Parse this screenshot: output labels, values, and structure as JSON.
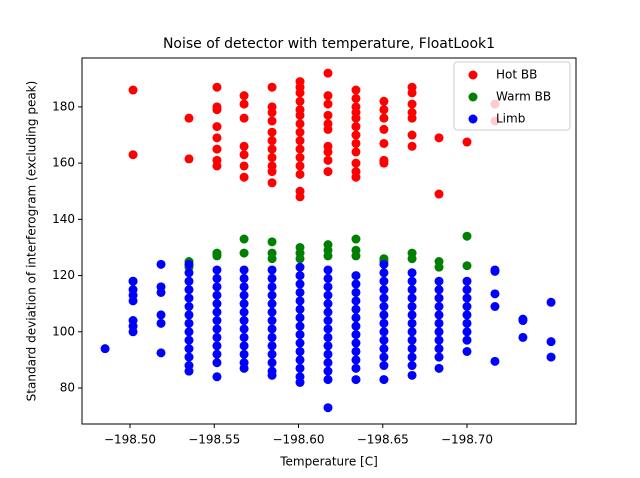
{
  "chart_data": {
    "type": "scatter",
    "title": "Noise of detector with temperature, FloatLook1",
    "x_label": "Temperature [C]",
    "y_label": "Standard deviation of interferogram (excluding peak)",
    "xlim": [
      -198.4715,
      -198.7647
    ],
    "ylim": [
      67.2,
      197.4
    ],
    "xticks": [
      {
        "value": -198.5,
        "label": "−198.50"
      },
      {
        "value": -198.55,
        "label": "−198.55"
      },
      {
        "value": -198.6,
        "label": "−198.60"
      },
      {
        "value": -198.65,
        "label": "−198.65"
      },
      {
        "value": -198.7,
        "label": "−198.70"
      }
    ],
    "yticks": [
      80,
      100,
      120,
      140,
      160,
      180
    ],
    "legend": "upper right",
    "series": [
      {
        "name": "Hot BB",
        "color": "#ff0000",
        "x": [
          -198.5018,
          -198.5018,
          -198.535,
          -198.535,
          -198.5516,
          -198.5516,
          -198.5516,
          -198.5516,
          -198.5516,
          -198.5516,
          -198.5516,
          -198.5516,
          -198.5677,
          -198.5677,
          -198.5677,
          -198.5677,
          -198.5677,
          -198.5677,
          -198.5677,
          -198.5843,
          -198.5843,
          -198.5843,
          -198.5843,
          -198.5843,
          -198.5843,
          -198.5843,
          -198.5843,
          -198.5843,
          -198.5843,
          -198.5843,
          -198.6009,
          -198.6009,
          -198.6009,
          -198.6009,
          -198.6009,
          -198.6009,
          -198.6009,
          -198.6009,
          -198.6009,
          -198.6009,
          -198.6009,
          -198.6009,
          -198.6009,
          -198.6009,
          -198.6009,
          -198.6175,
          -198.6175,
          -198.6175,
          -198.6175,
          -198.6175,
          -198.6175,
          -198.6175,
          -198.6175,
          -198.6175,
          -198.6175,
          -198.6341,
          -198.6341,
          -198.6341,
          -198.6341,
          -198.6341,
          -198.6341,
          -198.6341,
          -198.6341,
          -198.6341,
          -198.6341,
          -198.6341,
          -198.6341,
          -198.6507,
          -198.6507,
          -198.6507,
          -198.6507,
          -198.6507,
          -198.6507,
          -198.6507,
          -198.6674,
          -198.6674,
          -198.6674,
          -198.6674,
          -198.6674,
          -198.6674,
          -198.6674,
          -198.6834,
          -198.6834,
          -198.7,
          -198.7166,
          -198.7166
        ],
        "values": [
          186,
          163,
          176,
          161.5,
          187,
          180,
          179,
          173,
          169,
          165,
          161,
          159,
          184,
          181,
          176,
          166,
          163,
          159,
          155,
          187,
          180,
          178,
          175,
          171,
          168,
          165,
          162,
          159,
          157,
          153,
          189,
          187,
          185,
          182,
          179,
          177,
          174,
          171,
          168,
          165,
          162,
          159,
          156,
          150,
          148,
          192,
          184,
          181,
          177,
          174,
          172,
          166,
          164,
          161,
          157,
          186,
          183,
          180,
          178,
          176,
          173,
          170,
          167,
          164,
          160,
          157,
          155,
          182,
          179,
          176,
          172,
          167,
          161,
          160,
          187,
          185,
          181,
          178,
          176,
          170,
          166,
          169,
          149,
          167.5,
          181,
          175
        ]
      },
      {
        "name": "Warm BB",
        "color": "#008000",
        "x": [
          -198.5018,
          -198.535,
          -198.535,
          -198.5516,
          -198.5516,
          -198.5677,
          -198.5677,
          -198.5843,
          -198.5843,
          -198.5843,
          -198.6009,
          -198.6009,
          -198.6009,
          -198.6175,
          -198.6175,
          -198.6175,
          -198.6341,
          -198.6341,
          -198.6341,
          -198.6507,
          -198.6507,
          -198.6674,
          -198.6674,
          -198.6834,
          -198.6834,
          -198.7,
          -198.7
        ],
        "values": [
          118,
          125,
          123,
          128,
          127,
          133,
          128,
          132,
          128,
          126,
          130,
          128,
          126,
          131,
          129,
          127,
          133,
          129,
          127,
          126,
          125,
          128,
          126,
          125,
          123,
          134,
          123.5
        ]
      },
      {
        "name": "Limb",
        "color": "#0000ff",
        "x": [
          -198.4852,
          -198.5018,
          -198.5018,
          -198.5018,
          -198.5018,
          -198.5018,
          -198.5018,
          -198.5018,
          -198.5184,
          -198.5184,
          -198.5184,
          -198.5184,
          -198.5184,
          -198.5184,
          -198.535,
          -198.535,
          -198.535,
          -198.535,
          -198.535,
          -198.535,
          -198.535,
          -198.535,
          -198.535,
          -198.535,
          -198.535,
          -198.535,
          -198.535,
          -198.535,
          -198.5516,
          -198.5516,
          -198.5516,
          -198.5516,
          -198.5516,
          -198.5516,
          -198.5516,
          -198.5516,
          -198.5516,
          -198.5516,
          -198.5516,
          -198.5516,
          -198.5516,
          -198.5677,
          -198.5677,
          -198.5677,
          -198.5677,
          -198.5677,
          -198.5677,
          -198.5677,
          -198.5677,
          -198.5677,
          -198.5677,
          -198.5677,
          -198.5677,
          -198.5677,
          -198.5843,
          -198.5843,
          -198.5843,
          -198.5843,
          -198.5843,
          -198.5843,
          -198.5843,
          -198.5843,
          -198.5843,
          -198.5843,
          -198.5843,
          -198.5843,
          -198.5843,
          -198.5843,
          -198.6009,
          -198.6009,
          -198.6009,
          -198.6009,
          -198.6009,
          -198.6009,
          -198.6009,
          -198.6009,
          -198.6009,
          -198.6009,
          -198.6009,
          -198.6009,
          -198.6009,
          -198.6009,
          -198.6009,
          -198.6175,
          -198.6175,
          -198.6175,
          -198.6175,
          -198.6175,
          -198.6175,
          -198.6175,
          -198.6175,
          -198.6175,
          -198.6175,
          -198.6175,
          -198.6175,
          -198.6175,
          -198.6175,
          -198.6175,
          -198.6341,
          -198.6341,
          -198.6341,
          -198.6341,
          -198.6341,
          -198.6341,
          -198.6341,
          -198.6341,
          -198.6341,
          -198.6341,
          -198.6341,
          -198.6341,
          -198.6341,
          -198.6507,
          -198.6507,
          -198.6507,
          -198.6507,
          -198.6507,
          -198.6507,
          -198.6507,
          -198.6507,
          -198.6507,
          -198.6507,
          -198.6507,
          -198.6507,
          -198.6507,
          -198.6507,
          -198.6674,
          -198.6674,
          -198.6674,
          -198.6674,
          -198.6674,
          -198.6674,
          -198.6674,
          -198.6674,
          -198.6674,
          -198.6674,
          -198.6674,
          -198.6674,
          -198.6674,
          -198.6834,
          -198.6834,
          -198.6834,
          -198.6834,
          -198.6834,
          -198.6834,
          -198.6834,
          -198.6834,
          -198.6834,
          -198.6834,
          -198.6834,
          -198.7,
          -198.7,
          -198.7,
          -198.7,
          -198.7,
          -198.7,
          -198.7,
          -198.7,
          -198.7,
          -198.7166,
          -198.7166,
          -198.7166,
          -198.7166,
          -198.7166,
          -198.7332,
          -198.7332,
          -198.7332,
          -198.7499,
          -198.7499,
          -198.7499
        ],
        "values": [
          94,
          118,
          115,
          113,
          111,
          104,
          102,
          100,
          124,
          116,
          114,
          106,
          103,
          92.5,
          124,
          121,
          118,
          115,
          112,
          109,
          106,
          103,
          100,
          97,
          94,
          91,
          88,
          86,
          122,
          119,
          116,
          113,
          110,
          107,
          104,
          101,
          98,
          95,
          92,
          89,
          84,
          122,
          119,
          116,
          113,
          110,
          107,
          104,
          101,
          98,
          95,
          92,
          89,
          87,
          122,
          119,
          116,
          113,
          110,
          107,
          104,
          101,
          98,
          95,
          92,
          89,
          86,
          84.5,
          123,
          120,
          117,
          114,
          111,
          108,
          105,
          102,
          99,
          96,
          93,
          90,
          87,
          84,
          82,
          122,
          119,
          116,
          113,
          110,
          107,
          104,
          101,
          98,
          95,
          92,
          89,
          86,
          83,
          73,
          120,
          117,
          114,
          111,
          108,
          105,
          102,
          99,
          96,
          93,
          90,
          87,
          83,
          124,
          121,
          118,
          115,
          112,
          109,
          106,
          103,
          100,
          97,
          94,
          91,
          88,
          83,
          121,
          118,
          115,
          112,
          109,
          106,
          103,
          100,
          97,
          94,
          91,
          88,
          84.5,
          118,
          115,
          112,
          109,
          106,
          103,
          100,
          97,
          94,
          91,
          87,
          118,
          115,
          112,
          109,
          106,
          103,
          100,
          97,
          93,
          122,
          121.5,
          113.5,
          109,
          89.5,
          104.5,
          104,
          98,
          110.5,
          96.5,
          91
        ]
      }
    ]
  }
}
